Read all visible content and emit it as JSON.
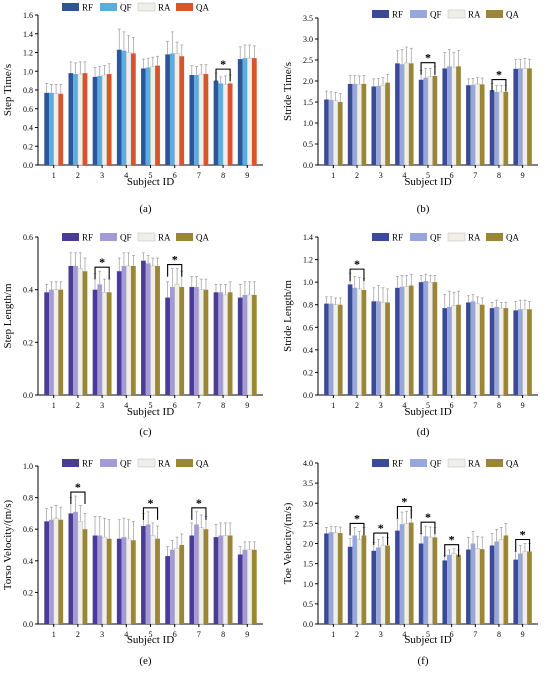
{
  "figure": {
    "xlabel": "Subject ID",
    "legend": [
      "RF",
      "QF",
      "RA",
      "QA"
    ],
    "subjects": [
      "1",
      "2",
      "3",
      "4",
      "5",
      "6",
      "7",
      "8",
      "9"
    ]
  },
  "chart_data": [
    {
      "type": "bar",
      "panel_label": "(a)",
      "title": "",
      "xlabel": "Subject ID",
      "ylabel": "Step Time/s",
      "ylim": [
        0,
        1.6
      ],
      "yticks": [
        "0.0",
        "0.2",
        "0.4",
        "0.6",
        "0.8",
        "1.0",
        "1.2",
        "1.4",
        "1.6"
      ],
      "categories": [
        "1",
        "2",
        "3",
        "4",
        "5",
        "6",
        "7",
        "8",
        "9"
      ],
      "colors": [
        "#2e5597",
        "#5aaedf",
        "#efeee9",
        "#d8542a"
      ],
      "legend_placement": "top",
      "series": [
        {
          "name": "RF",
          "values": [
            0.77,
            0.98,
            0.94,
            1.23,
            1.03,
            1.18,
            0.96,
            0.9,
            1.13
          ]
        },
        {
          "name": "QF",
          "values": [
            0.77,
            0.97,
            0.95,
            1.22,
            1.04,
            1.19,
            0.96,
            0.87,
            1.14
          ]
        },
        {
          "name": "RA",
          "values": [
            0.76,
            0.97,
            0.96,
            1.2,
            1.05,
            1.19,
            0.97,
            0.86,
            1.14
          ]
        },
        {
          "name": "QA",
          "values": [
            0.76,
            0.98,
            0.97,
            1.19,
            1.06,
            1.16,
            0.97,
            0.87,
            1.14
          ]
        }
      ],
      "errors": [
        [
          0.1,
          0.12,
          0.1,
          0.22,
          0.1,
          0.14,
          0.1,
          0.08,
          0.13
        ],
        [
          0.09,
          0.12,
          0.1,
          0.2,
          0.1,
          0.23,
          0.09,
          0.07,
          0.14
        ],
        [
          0.1,
          0.13,
          0.1,
          0.18,
          0.1,
          0.12,
          0.1,
          0.09,
          0.14
        ],
        [
          0.1,
          0.12,
          0.11,
          0.17,
          0.1,
          0.12,
          0.1,
          0.09,
          0.13
        ]
      ],
      "significance": [
        {
          "category": 8,
          "label": "*"
        }
      ]
    },
    {
      "type": "bar",
      "panel_label": "(b)",
      "title": "",
      "xlabel": "Subject ID",
      "ylabel": "Stride Time/s",
      "ylim": [
        0,
        3.5
      ],
      "yticks": [
        "0.0",
        "0.5",
        "1.0",
        "1.5",
        "2.0",
        "2.5",
        "3.0",
        "3.5"
      ],
      "categories": [
        "1",
        "2",
        "3",
        "4",
        "5",
        "6",
        "7",
        "8",
        "9"
      ],
      "colors": [
        "#3b4a96",
        "#97a6dc",
        "#efeee9",
        "#9b8638"
      ],
      "legend_placement": "top",
      "series": [
        {
          "name": "RF",
          "values": [
            1.56,
            1.93,
            1.87,
            2.42,
            2.03,
            2.3,
            1.9,
            1.78,
            2.29
          ]
        },
        {
          "name": "QF",
          "values": [
            1.55,
            1.93,
            1.88,
            2.4,
            2.08,
            2.35,
            1.91,
            1.74,
            2.3
          ]
        },
        {
          "name": "RA",
          "values": [
            1.53,
            1.92,
            1.9,
            2.43,
            2.1,
            2.33,
            1.93,
            1.74,
            2.3
          ]
        },
        {
          "name": "QA",
          "values": [
            1.5,
            1.93,
            1.96,
            2.42,
            2.12,
            2.35,
            1.92,
            1.74,
            2.3
          ]
        }
      ],
      "errors": [
        [
          0.2,
          0.2,
          0.18,
          0.3,
          0.22,
          0.38,
          0.15,
          0.16,
          0.22
        ],
        [
          0.19,
          0.2,
          0.18,
          0.35,
          0.22,
          0.4,
          0.15,
          0.15,
          0.22
        ],
        [
          0.2,
          0.2,
          0.18,
          0.38,
          0.2,
          0.35,
          0.15,
          0.16,
          0.24
        ],
        [
          0.2,
          0.2,
          0.2,
          0.36,
          0.22,
          0.38,
          0.15,
          0.16,
          0.22
        ]
      ],
      "significance": [
        {
          "category": 5,
          "label": "*"
        },
        {
          "category": 8,
          "label": "*"
        }
      ]
    },
    {
      "type": "bar",
      "panel_label": "(c)",
      "title": "",
      "xlabel": "Subject ID",
      "ylabel": "Step Length/m",
      "ylim": [
        0,
        0.6
      ],
      "yticks": [
        "0.0",
        "0.2",
        "0.4",
        "0.6"
      ],
      "categories": [
        "1",
        "2",
        "3",
        "4",
        "5",
        "6",
        "7",
        "8",
        "9"
      ],
      "colors": [
        "#4a3c94",
        "#a39bd6",
        "#efeee9",
        "#9b8638"
      ],
      "legend_placement": "top",
      "series": [
        {
          "name": "RF",
          "values": [
            0.39,
            0.49,
            0.4,
            0.47,
            0.51,
            0.37,
            0.41,
            0.39,
            0.37
          ]
        },
        {
          "name": "QF",
          "values": [
            0.4,
            0.49,
            0.42,
            0.49,
            0.5,
            0.41,
            0.41,
            0.39,
            0.38
          ]
        },
        {
          "name": "RA",
          "values": [
            0.4,
            0.48,
            0.39,
            0.49,
            0.49,
            0.42,
            0.4,
            0.38,
            0.38
          ]
        },
        {
          "name": "QA",
          "values": [
            0.4,
            0.47,
            0.39,
            0.49,
            0.49,
            0.41,
            0.4,
            0.39,
            0.38
          ]
        }
      ],
      "errors": [
        [
          0.03,
          0.05,
          0.06,
          0.05,
          0.03,
          0.06,
          0.04,
          0.03,
          0.05
        ],
        [
          0.03,
          0.05,
          0.05,
          0.05,
          0.03,
          0.07,
          0.04,
          0.03,
          0.05
        ],
        [
          0.03,
          0.06,
          0.05,
          0.05,
          0.03,
          0.06,
          0.04,
          0.04,
          0.05
        ],
        [
          0.03,
          0.05,
          0.05,
          0.04,
          0.03,
          0.06,
          0.04,
          0.04,
          0.05
        ]
      ],
      "significance": [
        {
          "category": 3,
          "label": "*"
        },
        {
          "category": 6,
          "label": "*"
        }
      ]
    },
    {
      "type": "bar",
      "panel_label": "(d)",
      "title": "",
      "xlabel": "Subject ID",
      "ylabel": "Stride Length/m",
      "ylim": [
        0,
        1.4
      ],
      "yticks": [
        "0.0",
        "0.2",
        "0.4",
        "0.6",
        "0.8",
        "1.0",
        "1.2",
        "1.4"
      ],
      "categories": [
        "1",
        "2",
        "3",
        "4",
        "5",
        "6",
        "7",
        "8",
        "9"
      ],
      "colors": [
        "#3b4a96",
        "#97a6dc",
        "#efeee9",
        "#9b8638"
      ],
      "legend_placement": "top",
      "series": [
        {
          "name": "RF",
          "values": [
            0.81,
            0.98,
            0.83,
            0.95,
            1.0,
            0.77,
            0.82,
            0.77,
            0.75
          ]
        },
        {
          "name": "QF",
          "values": [
            0.81,
            0.95,
            0.83,
            0.96,
            1.01,
            0.78,
            0.83,
            0.78,
            0.76
          ]
        },
        {
          "name": "RA",
          "values": [
            0.8,
            0.94,
            0.82,
            0.96,
            1.0,
            0.79,
            0.81,
            0.77,
            0.76
          ]
        },
        {
          "name": "QA",
          "values": [
            0.8,
            0.93,
            0.82,
            0.97,
            1.0,
            0.8,
            0.8,
            0.77,
            0.76
          ]
        }
      ],
      "errors": [
        [
          0.06,
          0.1,
          0.12,
          0.1,
          0.06,
          0.12,
          0.06,
          0.05,
          0.08
        ],
        [
          0.06,
          0.1,
          0.14,
          0.1,
          0.06,
          0.14,
          0.06,
          0.06,
          0.08
        ],
        [
          0.06,
          0.1,
          0.13,
          0.1,
          0.06,
          0.12,
          0.06,
          0.05,
          0.08
        ],
        [
          0.06,
          0.1,
          0.12,
          0.1,
          0.06,
          0.12,
          0.06,
          0.05,
          0.07
        ]
      ],
      "significance": [
        {
          "category": 2,
          "label": "*"
        }
      ]
    },
    {
      "type": "bar",
      "panel_label": "(e)",
      "title": "",
      "xlabel": "Subject ID",
      "ylabel": "Torso Velocity/(m/s)",
      "ylim": [
        0,
        1.0
      ],
      "yticks": [
        "0.0",
        "0.2",
        "0.4",
        "0.6",
        "0.8",
        "1.0"
      ],
      "categories": [
        "1",
        "2",
        "3",
        "4",
        "5",
        "6",
        "7",
        "8",
        "9"
      ],
      "colors": [
        "#4a3c94",
        "#a39bd6",
        "#efeee9",
        "#9b8638"
      ],
      "legend_placement": "top",
      "series": [
        {
          "name": "RF",
          "values": [
            0.65,
            0.7,
            0.56,
            0.54,
            0.62,
            0.43,
            0.56,
            0.55,
            0.44
          ]
        },
        {
          "name": "QF",
          "values": [
            0.66,
            0.71,
            0.56,
            0.55,
            0.63,
            0.47,
            0.63,
            0.56,
            0.47
          ]
        },
        {
          "name": "RA",
          "values": [
            0.67,
            0.65,
            0.55,
            0.54,
            0.56,
            0.48,
            0.61,
            0.56,
            0.47
          ]
        },
        {
          "name": "QA",
          "values": [
            0.66,
            0.6,
            0.54,
            0.53,
            0.54,
            0.5,
            0.6,
            0.56,
            0.47
          ]
        }
      ],
      "errors": [
        [
          0.08,
          0.1,
          0.12,
          0.12,
          0.08,
          0.06,
          0.08,
          0.08,
          0.05
        ],
        [
          0.08,
          0.1,
          0.12,
          0.12,
          0.08,
          0.06,
          0.08,
          0.08,
          0.05
        ],
        [
          0.08,
          0.1,
          0.12,
          0.12,
          0.08,
          0.07,
          0.08,
          0.08,
          0.05
        ],
        [
          0.08,
          0.1,
          0.12,
          0.12,
          0.08,
          0.07,
          0.08,
          0.08,
          0.05
        ]
      ],
      "significance": [
        {
          "category": 2,
          "label": "*"
        },
        {
          "category": 5,
          "label": "*"
        },
        {
          "category": 7,
          "label": "*"
        }
      ]
    },
    {
      "type": "bar",
      "panel_label": "(f)",
      "title": "",
      "xlabel": "Subject ID",
      "ylabel": "Toe Velocity/(m/s)",
      "ylim": [
        0,
        4.0
      ],
      "yticks": [
        "0.0",
        "0.5",
        "1.0",
        "1.5",
        "2.0",
        "2.5",
        "3.0",
        "3.5",
        "4.0"
      ],
      "categories": [
        "1",
        "2",
        "3",
        "4",
        "5",
        "6",
        "7",
        "8",
        "9"
      ],
      "colors": [
        "#3b4a96",
        "#97a6dc",
        "#efeee9",
        "#9b8638"
      ],
      "legend_placement": "top",
      "series": [
        {
          "name": "RF",
          "values": [
            2.25,
            1.92,
            1.82,
            2.32,
            2.0,
            1.58,
            1.85,
            1.95,
            1.6
          ]
        },
        {
          "name": "QF",
          "values": [
            2.28,
            2.2,
            1.9,
            2.48,
            2.18,
            1.72,
            2.0,
            2.05,
            1.75
          ]
        },
        {
          "name": "RA",
          "values": [
            2.27,
            2.1,
            1.96,
            2.5,
            2.16,
            1.75,
            1.88,
            2.1,
            1.8
          ]
        },
        {
          "name": "QA",
          "values": [
            2.26,
            2.2,
            1.95,
            2.52,
            2.15,
            1.72,
            1.86,
            2.2,
            1.8
          ]
        }
      ],
      "errors": [
        [
          0.15,
          0.2,
          0.2,
          0.3,
          0.25,
          0.12,
          0.3,
          0.3,
          0.2
        ],
        [
          0.15,
          0.2,
          0.2,
          0.3,
          0.25,
          0.12,
          0.3,
          0.3,
          0.2
        ],
        [
          0.15,
          0.2,
          0.2,
          0.3,
          0.25,
          0.12,
          0.3,
          0.3,
          0.2
        ],
        [
          0.15,
          0.2,
          0.2,
          0.3,
          0.25,
          0.12,
          0.3,
          0.3,
          0.2
        ]
      ],
      "significance": [
        {
          "category": 2,
          "label": "*"
        },
        {
          "category": 3,
          "label": "*"
        },
        {
          "category": 4,
          "label": "*"
        },
        {
          "category": 5,
          "label": "*"
        },
        {
          "category": 6,
          "label": "*"
        },
        {
          "category": 9,
          "label": "*"
        }
      ]
    }
  ]
}
